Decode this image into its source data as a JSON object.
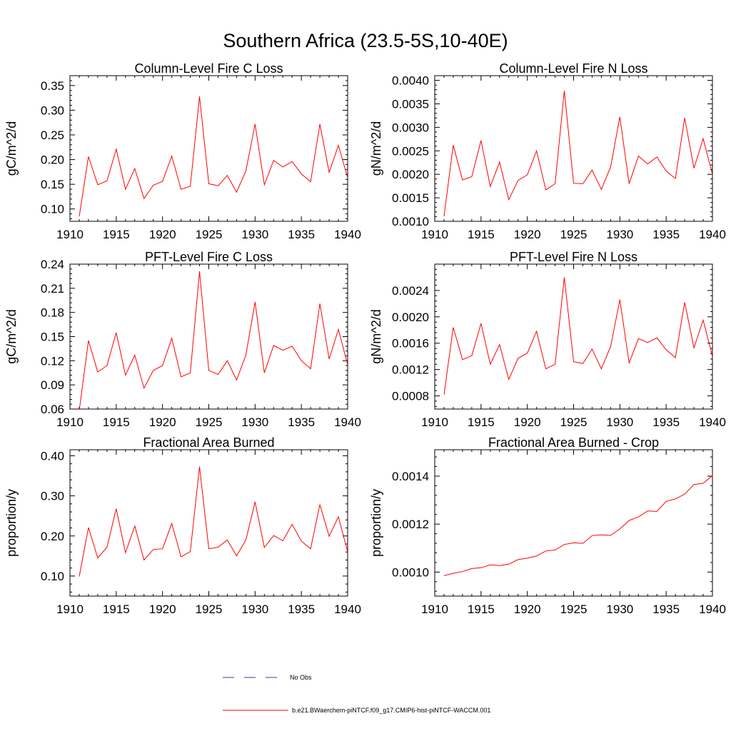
{
  "figure": {
    "title": "Southern Africa (23.5-5S,10-40E)",
    "legend": [
      {
        "label": "No Obs",
        "color": "#3a3aa0",
        "dash": true
      },
      {
        "label": "b.e21.BWaerchem-piNTCF.f09_g17.CMIP6-hist-piNTCF-WACCM.001",
        "color": "#ff0000",
        "dash": false
      }
    ]
  },
  "chart_data": [
    {
      "type": "line",
      "title": "Column-Level Fire C Loss",
      "xlabel": "",
      "ylabel": "gC/m^2/d",
      "xlim": [
        1910,
        1940
      ],
      "ylim": [
        0.075,
        0.37
      ],
      "xticks": [
        "1910",
        "1915",
        "1920",
        "1925",
        "1930",
        "1935",
        "1940"
      ],
      "yticks": [
        "0.10",
        "0.15",
        "0.20",
        "0.25",
        "0.30",
        "0.35"
      ],
      "color": "#ff0000",
      "x": [
        1911,
        1912,
        1913,
        1914,
        1915,
        1916,
        1917,
        1918,
        1919,
        1920,
        1921,
        1922,
        1923,
        1924,
        1925,
        1926,
        1927,
        1928,
        1929,
        1930,
        1931,
        1932,
        1933,
        1934,
        1935,
        1936,
        1937,
        1938,
        1939,
        1940
      ],
      "values": [
        0.085,
        0.206,
        0.149,
        0.157,
        0.221,
        0.14,
        0.182,
        0.121,
        0.148,
        0.156,
        0.207,
        0.14,
        0.146,
        0.328,
        0.151,
        0.147,
        0.168,
        0.134,
        0.177,
        0.272,
        0.149,
        0.198,
        0.185,
        0.196,
        0.171,
        0.155,
        0.272,
        0.174,
        0.229,
        0.163
      ]
    },
    {
      "type": "line",
      "title": "Column-Level Fire N Loss",
      "xlabel": "",
      "ylabel": "gN/m^2/d",
      "xlim": [
        1910,
        1940
      ],
      "ylim": [
        0.001,
        0.0041
      ],
      "xticks": [
        "1910",
        "1915",
        "1920",
        "1925",
        "1930",
        "1935",
        "1940"
      ],
      "yticks": [
        "0.0010",
        "0.0015",
        "0.0020",
        "0.0025",
        "0.0030",
        "0.0035",
        "0.0040"
      ],
      "color": "#ff0000",
      "x": [
        1911,
        1912,
        1913,
        1914,
        1915,
        1916,
        1917,
        1918,
        1919,
        1920,
        1921,
        1922,
        1923,
        1924,
        1925,
        1926,
        1927,
        1928,
        1929,
        1930,
        1931,
        1932,
        1933,
        1934,
        1935,
        1936,
        1937,
        1938,
        1939,
        1940
      ],
      "values": [
        0.00111,
        0.00262,
        0.00188,
        0.00195,
        0.00272,
        0.00174,
        0.00226,
        0.00146,
        0.00187,
        0.00199,
        0.0025,
        0.00167,
        0.0018,
        0.00378,
        0.00181,
        0.0018,
        0.00209,
        0.00168,
        0.00216,
        0.00322,
        0.0018,
        0.00239,
        0.00222,
        0.00237,
        0.00207,
        0.00191,
        0.0032,
        0.00213,
        0.00276,
        0.002
      ]
    },
    {
      "type": "line",
      "title": "PFT-Level Fire C Loss",
      "xlabel": "",
      "ylabel": "gC/m^2/d",
      "xlim": [
        1910,
        1940
      ],
      "ylim": [
        0.06,
        0.24
      ],
      "xticks": [
        "1910",
        "1915",
        "1920",
        "1925",
        "1930",
        "1935",
        "1940"
      ],
      "yticks": [
        "0.06",
        "0.09",
        "0.12",
        "0.15",
        "0.18",
        "0.21",
        "0.24"
      ],
      "color": "#ff0000",
      "x": [
        1911,
        1912,
        1913,
        1914,
        1915,
        1916,
        1917,
        1918,
        1919,
        1920,
        1921,
        1922,
        1923,
        1924,
        1925,
        1926,
        1927,
        1928,
        1929,
        1930,
        1931,
        1932,
        1933,
        1934,
        1935,
        1936,
        1937,
        1938,
        1939,
        1940
      ],
      "values": [
        0.058,
        0.145,
        0.106,
        0.114,
        0.155,
        0.102,
        0.127,
        0.086,
        0.108,
        0.114,
        0.148,
        0.1,
        0.105,
        0.231,
        0.108,
        0.103,
        0.12,
        0.096,
        0.127,
        0.193,
        0.105,
        0.139,
        0.133,
        0.138,
        0.12,
        0.11,
        0.191,
        0.122,
        0.159,
        0.115
      ]
    },
    {
      "type": "line",
      "title": "PFT-Level Fire N Loss",
      "xlabel": "",
      "ylabel": "gN/m^2/d",
      "xlim": [
        1910,
        1940
      ],
      "ylim": [
        0.0006,
        0.0028
      ],
      "xticks": [
        "1910",
        "1915",
        "1920",
        "1925",
        "1930",
        "1935",
        "1940"
      ],
      "yticks": [
        "0.0008",
        "0.0012",
        "0.0016",
        "0.0020",
        "0.0024"
      ],
      "color": "#ff0000",
      "x": [
        1911,
        1912,
        1913,
        1914,
        1915,
        1916,
        1917,
        1918,
        1919,
        1920,
        1921,
        1922,
        1923,
        1924,
        1925,
        1926,
        1927,
        1928,
        1929,
        1930,
        1931,
        1932,
        1933,
        1934,
        1935,
        1936,
        1937,
        1938,
        1939,
        1940
      ],
      "values": [
        0.00082,
        0.00184,
        0.00135,
        0.00141,
        0.0019,
        0.00128,
        0.00158,
        0.00105,
        0.00137,
        0.00145,
        0.00178,
        0.00121,
        0.00128,
        0.0026,
        0.00132,
        0.00129,
        0.00151,
        0.00121,
        0.00155,
        0.00226,
        0.0013,
        0.00167,
        0.00161,
        0.00168,
        0.0015,
        0.00138,
        0.00222,
        0.00153,
        0.00195,
        0.0014
      ]
    },
    {
      "type": "line",
      "title": "Fractional Area Burned",
      "xlabel": "",
      "ylabel": "proportion/y",
      "xlim": [
        1910,
        1940
      ],
      "ylim": [
        0.05,
        0.415
      ],
      "xticks": [
        "1910",
        "1915",
        "1920",
        "1925",
        "1930",
        "1935",
        "1940"
      ],
      "yticks": [
        "0.10",
        "0.20",
        "0.30",
        "0.40"
      ],
      "color": "#ff0000",
      "x": [
        1911,
        1912,
        1913,
        1914,
        1915,
        1916,
        1917,
        1918,
        1919,
        1920,
        1921,
        1922,
        1923,
        1924,
        1925,
        1926,
        1927,
        1928,
        1929,
        1930,
        1931,
        1932,
        1933,
        1934,
        1935,
        1936,
        1937,
        1938,
        1939,
        1940
      ],
      "values": [
        0.099,
        0.221,
        0.145,
        0.172,
        0.268,
        0.158,
        0.225,
        0.14,
        0.166,
        0.168,
        0.231,
        0.148,
        0.161,
        0.373,
        0.168,
        0.172,
        0.19,
        0.15,
        0.19,
        0.285,
        0.171,
        0.201,
        0.188,
        0.229,
        0.187,
        0.168,
        0.278,
        0.199,
        0.248,
        0.16
      ]
    },
    {
      "type": "line",
      "title": "Fractional Area Burned - Crop",
      "xlabel": "",
      "ylabel": "proportion/y",
      "xlim": [
        1910,
        1940
      ],
      "ylim": [
        0.0009,
        0.00151
      ],
      "xticks": [
        "1910",
        "1915",
        "1920",
        "1925",
        "1930",
        "1935",
        "1940"
      ],
      "yticks": [
        "0.0010",
        "0.0012",
        "0.0014"
      ],
      "color": "#ff0000",
      "x": [
        1911,
        1912,
        1913,
        1914,
        1915,
        1916,
        1917,
        1918,
        1919,
        1920,
        1921,
        1922,
        1923,
        1924,
        1925,
        1926,
        1927,
        1928,
        1929,
        1930,
        1931,
        1932,
        1933,
        1934,
        1935,
        1936,
        1937,
        1938,
        1939,
        1940
      ],
      "values": [
        0.000985,
        0.000995,
        0.001002,
        0.001015,
        0.001018,
        0.00103,
        0.001027,
        0.001033,
        0.001052,
        0.001058,
        0.001067,
        0.001088,
        0.001092,
        0.001115,
        0.001122,
        0.00112,
        0.001152,
        0.001155,
        0.001153,
        0.00118,
        0.001215,
        0.00123,
        0.001255,
        0.001253,
        0.001295,
        0.001305,
        0.001325,
        0.001365,
        0.00137,
        0.001402
      ]
    }
  ]
}
